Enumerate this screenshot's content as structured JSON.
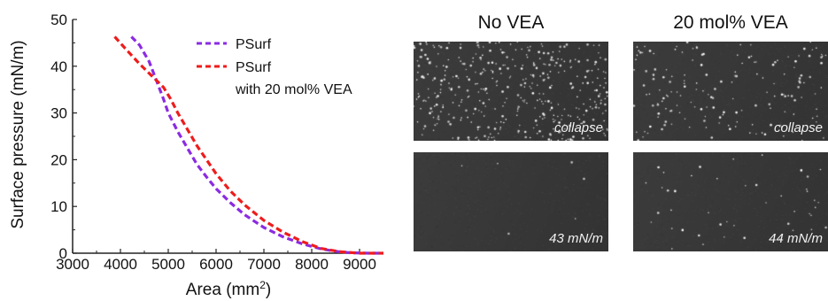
{
  "chart_data": {
    "type": "line",
    "xlabel": "Area (mm",
    "xlabel_superscript": "2",
    "xlabel_close": ")",
    "ylabel": "Surface pressure (mN/m)",
    "xlim": [
      3000,
      9500
    ],
    "ylim": [
      0,
      50
    ],
    "xticks": [
      "3000",
      "4000",
      "5000",
      "6000",
      "7000",
      "8000",
      "9000"
    ],
    "yticks": [
      "0",
      "10",
      "20",
      "30",
      "40",
      "50"
    ],
    "legend_position": "top-right",
    "series": [
      {
        "name": "PSurf",
        "color": "#8b2be2",
        "style": "dashed",
        "x": [
          4230,
          4400,
          4600,
          4750,
          4900,
          5000,
          5200,
          5400,
          5600,
          5800,
          6000,
          6300,
          6600,
          7000,
          7400,
          7800,
          8200,
          8500,
          8800,
          9200,
          9500
        ],
        "y": [
          46.3,
          44.5,
          41.0,
          37.0,
          33.0,
          30.0,
          26.0,
          22.5,
          19.0,
          16.3,
          13.8,
          10.8,
          8.2,
          5.5,
          3.5,
          2.0,
          0.9,
          0.4,
          0.1,
          0.0,
          0.0
        ]
      },
      {
        "name": "PSurf\nwith 20 mol% VEA",
        "name_line1": "PSurf",
        "name_line2": "with 20 mol% VEA",
        "color": "#ee1c1c",
        "style": "dashed",
        "x": [
          3880,
          4100,
          4400,
          4700,
          4900,
          5050,
          5200,
          5400,
          5600,
          5800,
          6000,
          6300,
          6600,
          7000,
          7400,
          7800,
          8200,
          8600,
          9000,
          9500
        ],
        "y": [
          46.3,
          43.8,
          40.5,
          37.5,
          35.5,
          33.0,
          30.0,
          26.5,
          23.0,
          20.0,
          17.0,
          13.3,
          10.3,
          7.0,
          4.5,
          2.5,
          1.0,
          0.3,
          0.0,
          0.0
        ]
      }
    ]
  },
  "panels": {
    "col1_title": "No VEA",
    "col2_title": "20 mol% VEA",
    "top_left_label": "collapse",
    "top_right_label": "collapse",
    "bottom_left_label": "43 mN/m",
    "bottom_right_label": "44 mN/m"
  }
}
